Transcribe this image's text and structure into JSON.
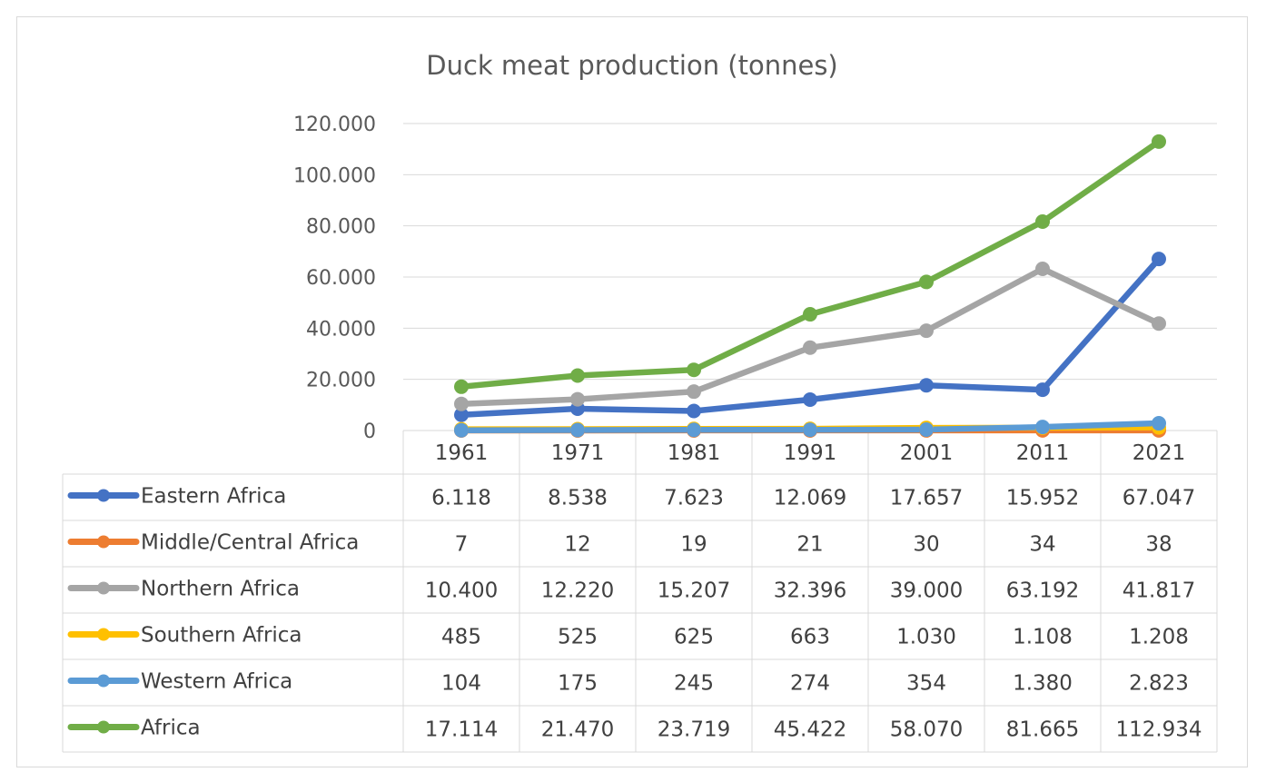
{
  "chart_data": {
    "type": "line",
    "title": "Duck meat production (tonnes)",
    "categories": [
      "1961",
      "1971",
      "1981",
      "1991",
      "2001",
      "2011",
      "2021"
    ],
    "y_tick_labels": [
      "0",
      "20.000",
      "40.000",
      "60.000",
      "80.000",
      "100.000",
      "120.000"
    ],
    "ylim": [
      0,
      120000
    ],
    "y_tick_step": 20000,
    "grid": true,
    "legend": "data-table",
    "series": [
      {
        "name": "Eastern Africa",
        "color": "#4472C4",
        "values": [
          6118,
          8538,
          7623,
          12069,
          17657,
          15952,
          67047
        ],
        "labels": [
          "6.118",
          "8.538",
          "7.623",
          "12.069",
          "17.657",
          "15.952",
          "67.047"
        ]
      },
      {
        "name": "Middle/Central Africa",
        "color": "#ED7D31",
        "values": [
          7,
          12,
          19,
          21,
          30,
          34,
          38
        ],
        "labels": [
          "7",
          "12",
          "19",
          "21",
          "30",
          "34",
          "38"
        ]
      },
      {
        "name": "Northern Africa",
        "color": "#A5A5A5",
        "values": [
          10400,
          12220,
          15207,
          32396,
          39000,
          63192,
          41817
        ],
        "labels": [
          "10.400",
          "12.220",
          "15.207",
          "32.396",
          "39.000",
          "63.192",
          "41.817"
        ]
      },
      {
        "name": "Southern Africa",
        "color": "#FFC000",
        "values": [
          485,
          525,
          625,
          663,
          1030,
          1108,
          1208
        ],
        "labels": [
          "485",
          "525",
          "625",
          "663",
          "1.030",
          "1.108",
          "1.208"
        ]
      },
      {
        "name": "Western Africa",
        "color": "#5B9BD5",
        "values": [
          104,
          175,
          245,
          274,
          354,
          1380,
          2823
        ],
        "labels": [
          "104",
          "175",
          "245",
          "274",
          "354",
          "1.380",
          "2.823"
        ]
      },
      {
        "name": "Africa",
        "color": "#70AD47",
        "values": [
          17114,
          21470,
          23719,
          45422,
          58070,
          81665,
          112934
        ],
        "labels": [
          "17.114",
          "21.470",
          "23.719",
          "45.422",
          "58.070",
          "81.665",
          "112.934"
        ]
      }
    ]
  }
}
